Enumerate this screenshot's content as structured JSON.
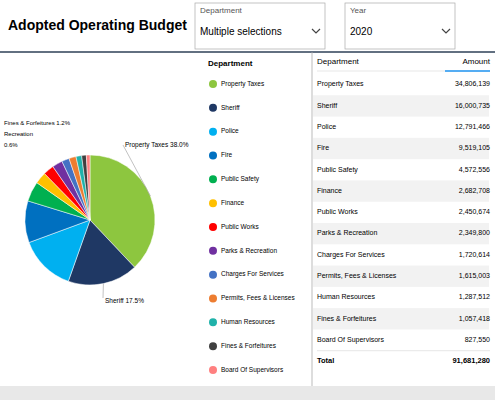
{
  "chart_data": {
    "type": "pie",
    "title": "Adopted Operating Budget",
    "categories": [
      "Property Taxes",
      "Sheriff",
      "Police",
      "Fire",
      "Public Safety",
      "Finance",
      "Public Works",
      "Parks & Recreation",
      "Charges For Services",
      "Permits, Fees & Licenses",
      "Human Resources",
      "Fines & Forfeitures",
      "Board Of Supervisors"
    ],
    "values": [
      34806139,
      16000735,
      12791466,
      9519105,
      4572556,
      2682708,
      2450674,
      2349800,
      1720614,
      1615003,
      1287512,
      1057418,
      827550
    ],
    "value_labels": [
      "34,806,139",
      "16,000,735",
      "12,791,466",
      "9,519,105",
      "4,572,556",
      "2,682,708",
      "2,450,674",
      "2,349,800",
      "1,720,614",
      "1,615,003",
      "1,287,512",
      "1,057,418",
      "827,550"
    ],
    "colors": [
      "#8DC63F",
      "#1F3864",
      "#00B0F0",
      "#0070C0",
      "#00B050",
      "#FFC000",
      "#FF0000",
      "#7030A0",
      "#4472C4",
      "#ED7D31",
      "#20B2AA",
      "#404040",
      "#FF8080"
    ],
    "legend": "right",
    "legend_title": "Department",
    "annotations": [
      "Property Taxes 38.0%",
      "Sheriff 17.5%",
      "Fines & Forfeitures 1.2%",
      "Recreation",
      "0.6%"
    ],
    "table": {
      "columns": [
        "Department",
        "Amount"
      ],
      "total_label": "Total",
      "total": {
        "value": 91681280,
        "label": "91,681,280"
      }
    }
  },
  "filters": [
    {
      "label": "Department",
      "value": "Multiple selections"
    },
    {
      "label": "Year",
      "value": "2020"
    }
  ]
}
